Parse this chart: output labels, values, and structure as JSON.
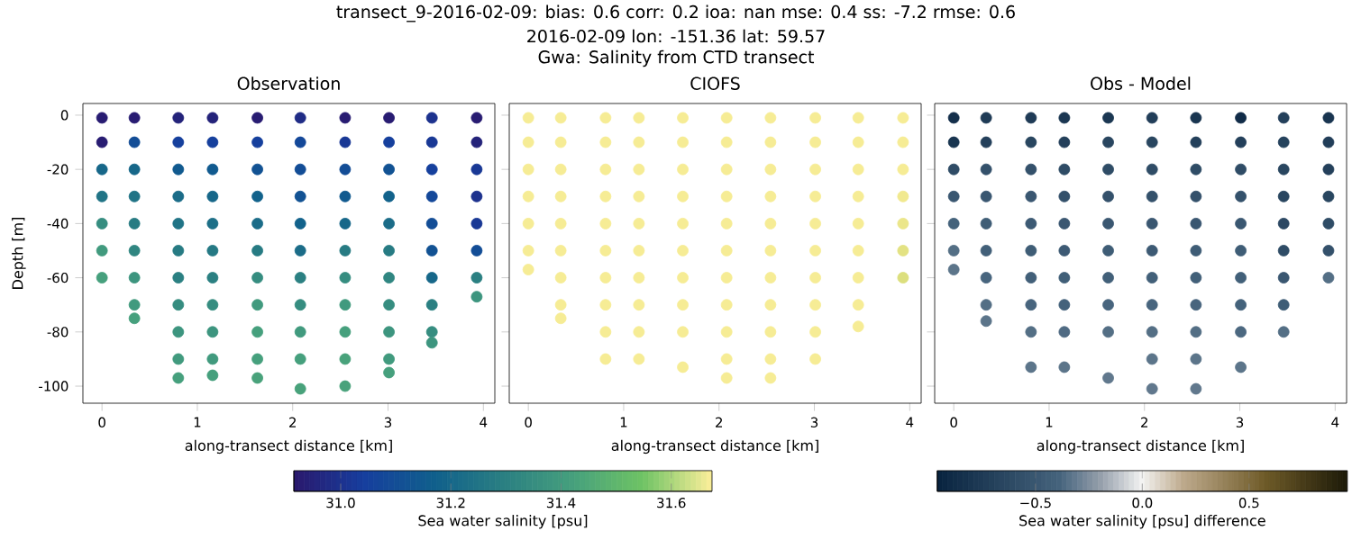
{
  "chart_data": [
    {
      "type": "other",
      "title": "transect_9-2016-02-09: bias: 0.6  corr: 0.2  ioa: nan  mse: 0.4  ss: -7.2  rmse: 0.6",
      "subtitle": "2016-02-09 lon: -151.36 lat: 59.57",
      "annotations": [
        "Gwa: Salinity from CTD transect"
      ]
    },
    {
      "type": "scatter",
      "title": "Observation",
      "xlabel": "along-transect distance [km]",
      "ylabel": "Depth [m]",
      "xlim": [
        -0.2,
        4.12
      ],
      "ylim": [
        -106.3,
        4.3
      ],
      "xticks": [
        0,
        1,
        2,
        3,
        4
      ],
      "yticks": [
        0,
        -20,
        -40,
        -60,
        -80,
        -100
      ],
      "marker": "circle",
      "clim": [
        30.915,
        31.674
      ],
      "cticks": [
        {
          "value": 31.0,
          "label": "31.0"
        },
        {
          "value": 31.2,
          "label": "31.2"
        },
        {
          "value": 31.4,
          "label": "31.4"
        },
        {
          "value": 31.6,
          "label": "31.6"
        }
      ],
      "clabel": "Sea water salinity [psu]",
      "x": [
        0,
        0,
        0,
        0,
        0,
        0,
        0,
        0.34,
        0.34,
        0.34,
        0.34,
        0.34,
        0.34,
        0.34,
        0.34,
        0.34,
        0.8,
        0.8,
        0.8,
        0.8,
        0.8,
        0.8,
        0.8,
        0.8,
        0.8,
        0.8,
        0.8,
        1.16,
        1.16,
        1.16,
        1.16,
        1.16,
        1.16,
        1.16,
        1.16,
        1.16,
        1.16,
        1.16,
        1.63,
        1.63,
        1.63,
        1.63,
        1.63,
        1.63,
        1.63,
        1.63,
        1.63,
        1.63,
        1.63,
        2.08,
        2.08,
        2.08,
        2.08,
        2.08,
        2.08,
        2.08,
        2.08,
        2.08,
        2.08,
        2.08,
        2.55,
        2.55,
        2.55,
        2.55,
        2.55,
        2.55,
        2.55,
        2.55,
        2.55,
        2.55,
        2.55,
        3.01,
        3.01,
        3.01,
        3.01,
        3.01,
        3.01,
        3.01,
        3.01,
        3.01,
        3.01,
        3.01,
        3.46,
        3.46,
        3.46,
        3.46,
        3.46,
        3.46,
        3.46,
        3.46,
        3.46,
        3.46,
        3.93,
        3.93,
        3.93,
        3.93,
        3.93,
        3.93,
        3.93,
        3.93
      ],
      "values": [
        -1,
        -10,
        -20,
        -30,
        -40,
        -50,
        -60,
        -1,
        -10,
        -20,
        -30,
        -40,
        -50,
        -60,
        -70,
        -75,
        -1,
        -10,
        -20,
        -30,
        -40,
        -50,
        -60,
        -70,
        -80,
        -90,
        -97,
        -1,
        -10,
        -20,
        -30,
        -40,
        -50,
        -60,
        -70,
        -80,
        -90,
        -96,
        -1,
        -10,
        -20,
        -30,
        -40,
        -50,
        -60,
        -70,
        -80,
        -90,
        -97,
        -1,
        -10,
        -20,
        -30,
        -40,
        -50,
        -60,
        -70,
        -80,
        -90,
        -101,
        -1,
        -10,
        -20,
        -30,
        -40,
        -50,
        -60,
        -70,
        -80,
        -90,
        -100,
        -1,
        -10,
        -20,
        -30,
        -40,
        -50,
        -60,
        -70,
        -80,
        -90,
        -95,
        -1,
        -10,
        -20,
        -30,
        -40,
        -50,
        -60,
        -70,
        -80,
        -84,
        -1,
        -10,
        -20,
        -30,
        -40,
        -50,
        -60,
        -67
      ],
      "cvalues": [
        30.93,
        30.93,
        31.2,
        31.25,
        31.35,
        31.4,
        31.42,
        30.93,
        31.1,
        31.2,
        31.25,
        31.28,
        31.32,
        31.38,
        31.4,
        31.42,
        30.95,
        31.05,
        31.15,
        31.22,
        31.25,
        31.28,
        31.3,
        31.35,
        31.38,
        31.4,
        31.42,
        30.95,
        31.05,
        31.15,
        31.2,
        31.23,
        31.27,
        31.3,
        31.35,
        31.38,
        31.4,
        31.42,
        30.93,
        31.05,
        31.12,
        31.18,
        31.22,
        31.28,
        31.35,
        31.4,
        31.42,
        31.42,
        31.43,
        30.98,
        31.08,
        31.1,
        31.12,
        31.18,
        31.22,
        31.3,
        31.35,
        31.4,
        31.42,
        31.43,
        30.93,
        31.02,
        31.1,
        31.15,
        31.2,
        31.28,
        31.35,
        31.4,
        31.42,
        31.43,
        31.43,
        30.93,
        31.05,
        31.12,
        31.18,
        31.22,
        31.28,
        31.32,
        31.35,
        31.38,
        31.4,
        31.42,
        31.0,
        31.02,
        31.05,
        31.08,
        31.1,
        31.12,
        31.2,
        31.3,
        31.35,
        31.38,
        30.93,
        30.95,
        31.02,
        31.0,
        31.02,
        31.1,
        31.3,
        31.38
      ]
    },
    {
      "type": "scatter",
      "title": "CIOFS",
      "xlabel": "along-transect distance [km]",
      "xlim": [
        -0.2,
        4.12
      ],
      "ylim": [
        -106.3,
        4.3
      ],
      "xticks": [
        0,
        1,
        2,
        3,
        4
      ],
      "yticks": [
        0,
        -20,
        -40,
        -60,
        -80,
        -100
      ],
      "tick_labels": "x",
      "marker": "circle",
      "colors": [
        "#f6ec95",
        "#f6ec95",
        "#f6ec95",
        "#f6ec95",
        "#f6ec95",
        "#f6ec95",
        "#f6ec95",
        "#f6ec95",
        "#f6ec95",
        "#f6ec95",
        "#f6ec95",
        "#f6ec95",
        "#f6ec95",
        "#f6ec95",
        "#f6ec95",
        "#f6ec95",
        "#f6ec95",
        "#f6ec95",
        "#f6ec95",
        "#f6ec95",
        "#f6ec95",
        "#f6ec95",
        "#f6ec95",
        "#f6ec95",
        "#f6ec95",
        "#f6ec95",
        "#f6ec95",
        "#f6ec95",
        "#f6ec95",
        "#f6ec95",
        "#f6ec95",
        "#f6ec95",
        "#f6ec95",
        "#f6ec95",
        "#f6ec95",
        "#f6ec95",
        "#f6ec95",
        "#f6ec95",
        "#f6ec95",
        "#f6ec95",
        "#f6ec95",
        "#f6ec95",
        "#f6ec95",
        "#f6ec95",
        "#f6ec95",
        "#f6ec95",
        "#f6ec95",
        "#f6ec95",
        "#f6ec95",
        "#f6ec95",
        "#f6ec95",
        "#f6ec95",
        "#f6ec95",
        "#f6ec95",
        "#f6ec95",
        "#f6ec95",
        "#f6ec95",
        "#f6ec95",
        "#f6ec95",
        "#f6ec95",
        "#f6ec95",
        "#f6ec95",
        "#f6ec95",
        "#f6ec95",
        "#f6ec95",
        "#f6ec95",
        "#f6ec95",
        "#f6ec95",
        "#f6ec95",
        "#f6ec95",
        "#f6ec95",
        "#f6ec95",
        "#f6ec95",
        "#f6ec95",
        "#f6ec95",
        "#f6ec95",
        "#f6ec95",
        "#f6ec95",
        "#f6ec95",
        "#f6ec95",
        "#f6ec95",
        "#f6ec95",
        "#f6ec95",
        "#f6ec95",
        "#f6ec95",
        "#f6ec95",
        "#f6ec95",
        "#f6ec95",
        "#f6ec95",
        "#f6ec95",
        "#f1e98f",
        "#ebe68a",
        "#e3e283",
        "#dcdf7e"
      ],
      "x": [
        0,
        0,
        0,
        0,
        0,
        0,
        0,
        0.34,
        0.34,
        0.34,
        0.34,
        0.34,
        0.34,
        0.34,
        0.34,
        0.34,
        0.81,
        0.81,
        0.81,
        0.81,
        0.81,
        0.81,
        0.81,
        0.81,
        0.81,
        0.81,
        1.16,
        1.16,
        1.16,
        1.16,
        1.16,
        1.16,
        1.16,
        1.16,
        1.16,
        1.16,
        1.62,
        1.62,
        1.62,
        1.62,
        1.62,
        1.62,
        1.62,
        1.62,
        1.62,
        1.62,
        2.08,
        2.08,
        2.08,
        2.08,
        2.08,
        2.08,
        2.08,
        2.08,
        2.08,
        2.08,
        2.08,
        2.54,
        2.54,
        2.54,
        2.54,
        2.54,
        2.54,
        2.54,
        2.54,
        2.54,
        2.54,
        2.54,
        3.01,
        3.01,
        3.01,
        3.01,
        3.01,
        3.01,
        3.01,
        3.01,
        3.01,
        3.01,
        3.46,
        3.46,
        3.46,
        3.46,
        3.46,
        3.46,
        3.46,
        3.46,
        3.46,
        3.93,
        3.93,
        3.93,
        3.93,
        3.93,
        3.93,
        3.93
      ],
      "values": [
        -1,
        -10,
        -20,
        -30,
        -40,
        -50,
        -57,
        -1,
        -10,
        -20,
        -30,
        -40,
        -50,
        -60,
        -70,
        -75,
        -1,
        -10,
        -20,
        -30,
        -40,
        -50,
        -60,
        -70,
        -80,
        -90,
        -1,
        -10,
        -20,
        -30,
        -40,
        -50,
        -60,
        -70,
        -80,
        -90,
        -1,
        -10,
        -20,
        -30,
        -40,
        -50,
        -60,
        -70,
        -80,
        -93,
        -1,
        -10,
        -20,
        -30,
        -40,
        -50,
        -60,
        -70,
        -80,
        -90,
        -97,
        -1,
        -10,
        -20,
        -30,
        -40,
        -50,
        -60,
        -70,
        -80,
        -90,
        -97,
        -1,
        -10,
        -20,
        -30,
        -40,
        -50,
        -60,
        -70,
        -80,
        -90,
        -1,
        -10,
        -20,
        -30,
        -40,
        -50,
        -60,
        -70,
        -78,
        -1,
        -10,
        -20,
        -30,
        -40,
        -50,
        -60
      ]
    },
    {
      "type": "scatter",
      "title": "Obs - Model",
      "xlabel": "along-transect distance [km]",
      "xlim": [
        -0.2,
        4.12
      ],
      "ylim": [
        -106.3,
        4.3
      ],
      "xticks": [
        0,
        1,
        2,
        3,
        4
      ],
      "yticks": [
        0,
        -20,
        -40,
        -60,
        -80,
        -100
      ],
      "tick_labels": "x",
      "marker": "circle",
      "clim": [
        -0.96,
        0.96
      ],
      "cticks": [
        {
          "value": -0.5,
          "label": "−0.5"
        },
        {
          "value": 0,
          "label": "0.0"
        },
        {
          "value": 0.5,
          "label": "0.5"
        }
      ],
      "clabel": "Sea water salinity [psu] difference",
      "x": [
        0,
        0,
        0,
        0,
        0,
        0,
        0,
        0.34,
        0.34,
        0.34,
        0.34,
        0.34,
        0.34,
        0.34,
        0.34,
        0.34,
        0.81,
        0.81,
        0.81,
        0.81,
        0.81,
        0.81,
        0.81,
        0.81,
        0.81,
        0.81,
        1.16,
        1.16,
        1.16,
        1.16,
        1.16,
        1.16,
        1.16,
        1.16,
        1.16,
        1.16,
        1.62,
        1.62,
        1.62,
        1.62,
        1.62,
        1.62,
        1.62,
        1.62,
        1.62,
        1.62,
        2.08,
        2.08,
        2.08,
        2.08,
        2.08,
        2.08,
        2.08,
        2.08,
        2.08,
        2.08,
        2.08,
        2.54,
        2.54,
        2.54,
        2.54,
        2.54,
        2.54,
        2.54,
        2.54,
        2.54,
        2.54,
        2.54,
        3.01,
        3.01,
        3.01,
        3.01,
        3.01,
        3.01,
        3.01,
        3.01,
        3.01,
        3.01,
        3.46,
        3.46,
        3.46,
        3.46,
        3.46,
        3.46,
        3.46,
        3.46,
        3.46,
        3.93,
        3.93,
        3.93,
        3.93,
        3.93,
        3.93,
        3.93
      ],
      "values": [
        -1,
        -10,
        -20,
        -30,
        -40,
        -50,
        -57,
        -1,
        -10,
        -20,
        -30,
        -40,
        -50,
        -60,
        -70,
        -76,
        -1,
        -10,
        -20,
        -30,
        -40,
        -50,
        -60,
        -70,
        -80,
        -93,
        -1,
        -10,
        -20,
        -30,
        -40,
        -50,
        -60,
        -70,
        -80,
        -93,
        -1,
        -10,
        -20,
        -30,
        -40,
        -50,
        -60,
        -70,
        -80,
        -97,
        -1,
        -10,
        -20,
        -30,
        -40,
        -50,
        -60,
        -70,
        -80,
        -90,
        -101,
        -1,
        -10,
        -20,
        -30,
        -40,
        -50,
        -60,
        -70,
        -80,
        -90,
        -101,
        -1,
        -10,
        -20,
        -30,
        -40,
        -50,
        -60,
        -70,
        -80,
        -93,
        -1,
        -10,
        -20,
        -30,
        -40,
        -50,
        -60,
        -70,
        -80,
        -1,
        -10,
        -20,
        -30,
        -40,
        -50,
        -60
      ],
      "cvalues": [
        -0.85,
        -0.8,
        -0.6,
        -0.5,
        -0.4,
        -0.35,
        -0.33,
        -0.75,
        -0.7,
        -0.55,
        -0.5,
        -0.45,
        -0.42,
        -0.38,
        -0.35,
        -0.33,
        -0.75,
        -0.65,
        -0.55,
        -0.5,
        -0.47,
        -0.45,
        -0.42,
        -0.38,
        -0.35,
        -0.33,
        -0.78,
        -0.7,
        -0.6,
        -0.55,
        -0.5,
        -0.47,
        -0.43,
        -0.4,
        -0.36,
        -0.33,
        -0.78,
        -0.65,
        -0.6,
        -0.55,
        -0.5,
        -0.45,
        -0.42,
        -0.38,
        -0.35,
        -0.32,
        -0.72,
        -0.65,
        -0.6,
        -0.55,
        -0.5,
        -0.47,
        -0.42,
        -0.38,
        -0.35,
        -0.33,
        -0.32,
        -0.8,
        -0.7,
        -0.6,
        -0.55,
        -0.5,
        -0.45,
        -0.42,
        -0.38,
        -0.35,
        -0.33,
        -0.32,
        -0.88,
        -0.7,
        -0.6,
        -0.55,
        -0.5,
        -0.45,
        -0.42,
        -0.4,
        -0.37,
        -0.33,
        -0.7,
        -0.68,
        -0.65,
        -0.65,
        -0.63,
        -0.6,
        -0.5,
        -0.45,
        -0.35,
        -0.8,
        -0.72,
        -0.7,
        -0.65,
        -0.6,
        -0.55,
        -0.35
      ]
    }
  ]
}
